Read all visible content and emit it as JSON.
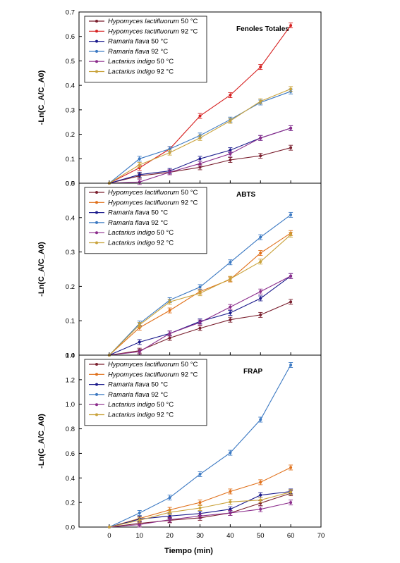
{
  "chart_data": [
    {
      "type": "line",
      "title": "Fenoles Totales",
      "ylabel": "-Ln(C_A/C_A0)",
      "xlabel": "",
      "ylim": [
        0,
        0.7
      ],
      "yticks": [
        "0.0",
        "0.1",
        "0.2",
        "0.3",
        "0.4",
        "0.5",
        "0.6",
        "0.7"
      ],
      "yticks_shown": [
        true,
        true,
        true,
        true,
        true,
        true,
        true,
        true
      ],
      "x": [
        0,
        10,
        20,
        30,
        40,
        50,
        60
      ],
      "legend_position": "top-left",
      "series": [
        {
          "name": "Hypomyces lactifluorum 50 °C",
          "species": "Hypomyces lactifluorum",
          "temp": " 50 °C",
          "color": "#7a1f2e",
          "values": [
            0,
            0.03,
            0.045,
            0.065,
            0.095,
            0.112,
            0.145
          ]
        },
        {
          "name": "Hypomyces lactifluorum 92 °C",
          "species": "Hypomyces lactifluorum",
          "temp": " 92 °C",
          "color": "#d62020",
          "values": [
            0,
            0.063,
            0.14,
            0.275,
            0.36,
            0.475,
            0.645
          ]
        },
        {
          "name": "Ramaria flava 50 °C",
          "species": "Ramaria flava",
          "temp": " 50 °C",
          "color": "#1a1a8c",
          "values": [
            0,
            0.035,
            0.05,
            0.1,
            0.135,
            0.185,
            0.225
          ]
        },
        {
          "name": "Ramaria flava 92 °C",
          "species": "Ramaria flava",
          "temp": " 92 °C",
          "color": "#3a78c2",
          "values": [
            0,
            0.1,
            0.14,
            0.195,
            0.26,
            0.33,
            0.375
          ]
        },
        {
          "name": "Lactarius indigo 50 °C",
          "species": "Lactarius indigo",
          "temp": " 50 °C",
          "color": "#8b2c8b",
          "values": [
            0,
            0.005,
            0.045,
            0.08,
            0.12,
            0.185,
            0.225
          ]
        },
        {
          "name": "Lactarius indigo 92 °C",
          "species": "Lactarius indigo",
          "temp": " 92 °C",
          "color": "#c9a23a",
          "values": [
            0,
            0.075,
            0.125,
            0.185,
            0.255,
            0.335,
            0.385
          ]
        }
      ]
    },
    {
      "type": "line",
      "title": "ABTS",
      "ylabel": "-Ln(C_A/C_A0)",
      "xlabel": "",
      "ylim": [
        0,
        0.5
      ],
      "yticks": [
        "0.0",
        "0.1",
        "0.2",
        "0.3",
        "0.4",
        "0.5"
      ],
      "yticks_shown": [
        true,
        true,
        true,
        true,
        true,
        true
      ],
      "x": [
        0,
        10,
        20,
        30,
        40,
        50,
        60
      ],
      "legend_position": "top-left",
      "series": [
        {
          "name": "Hypomyces lactifluorum 50 °C",
          "species": "Hypomyces lactifluorum",
          "temp": " 50 °C",
          "color": "#7a1f2e",
          "values": [
            0,
            0.013,
            0.05,
            0.078,
            0.103,
            0.117,
            0.155
          ]
        },
        {
          "name": "Hypomyces lactifluorum 92 °C",
          "species": "Hypomyces lactifluorum",
          "temp": " 92 °C",
          "color": "#e0701a",
          "values": [
            0,
            0.08,
            0.13,
            0.185,
            0.22,
            0.297,
            0.355
          ]
        },
        {
          "name": "Ramaria flava 50 °C",
          "species": "Ramaria flava",
          "temp": " 50 °C",
          "color": "#1a1a8c",
          "values": [
            0,
            0.038,
            0.063,
            0.098,
            0.123,
            0.165,
            0.23
          ]
        },
        {
          "name": "Ramaria flava 92 °C",
          "species": "Ramaria flava",
          "temp": " 92 °C",
          "color": "#3a78c2",
          "values": [
            0,
            0.092,
            0.16,
            0.198,
            0.27,
            0.343,
            0.408
          ]
        },
        {
          "name": "Lactarius indigo 50 °C",
          "species": "Lactarius indigo",
          "temp": " 50 °C",
          "color": "#8b2c8b",
          "values": [
            0,
            0.01,
            0.063,
            0.095,
            0.14,
            0.185,
            0.23
          ]
        },
        {
          "name": "Lactarius indigo 92 °C",
          "species": "Lactarius indigo",
          "temp": " 92 °C",
          "color": "#c9a23a",
          "values": [
            0,
            0.088,
            0.155,
            0.18,
            0.222,
            0.272,
            0.35
          ]
        }
      ]
    },
    {
      "type": "line",
      "title": "FRAP",
      "ylabel": "-Ln(C_A/C_A0)",
      "xlabel": "Tiempo (min)",
      "xticks": [
        "0",
        "10",
        "20",
        "30",
        "40",
        "50",
        "60",
        "70"
      ],
      "ylim": [
        0,
        1.4
      ],
      "yticks": [
        "0.0",
        "0.2",
        "0.4",
        "0.6",
        "0.8",
        "1.0",
        "1.2",
        "1.4"
      ],
      "yticks_shown": [
        true,
        true,
        true,
        true,
        true,
        true,
        true,
        true
      ],
      "xlim": [
        -10,
        70
      ],
      "x": [
        0,
        10,
        20,
        30,
        40,
        50,
        60
      ],
      "legend_position": "top-left",
      "series": [
        {
          "name": "Hypomyces lactifluorum 50 °C",
          "species": "Hypomyces lactifluorum",
          "temp": " 50 °C",
          "color": "#7a1f2e",
          "values": [
            0,
            0.03,
            0.055,
            0.075,
            0.115,
            0.195,
            0.275
          ]
        },
        {
          "name": "Hypomyces lactifluorum 92 °C",
          "species": "Hypomyces lactifluorum",
          "temp": " 92 °C",
          "color": "#e0701a",
          "values": [
            0,
            0.07,
            0.14,
            0.2,
            0.29,
            0.365,
            0.485
          ]
        },
        {
          "name": "Ramaria flava 50 °C",
          "species": "Ramaria flava",
          "temp": " 50 °C",
          "color": "#1a1a8c",
          "values": [
            0,
            0.065,
            0.09,
            0.11,
            0.145,
            0.26,
            0.29
          ]
        },
        {
          "name": "Ramaria flava 92 °C",
          "species": "Ramaria flava",
          "temp": " 92 °C",
          "color": "#3a78c2",
          "values": [
            0,
            0.115,
            0.24,
            0.43,
            0.605,
            0.875,
            1.32
          ]
        },
        {
          "name": "Lactarius indigo 50 °C",
          "species": "Lactarius indigo",
          "temp": " 50 °C",
          "color": "#8b2c8b",
          "values": [
            0,
            0.02,
            0.06,
            0.09,
            0.115,
            0.145,
            0.2
          ]
        },
        {
          "name": "Lactarius indigo 92 °C",
          "species": "Lactarius indigo",
          "temp": " 92 °C",
          "color": "#c9a23a",
          "values": [
            0,
            0.055,
            0.12,
            0.155,
            0.205,
            0.22,
            0.285
          ]
        }
      ]
    }
  ]
}
